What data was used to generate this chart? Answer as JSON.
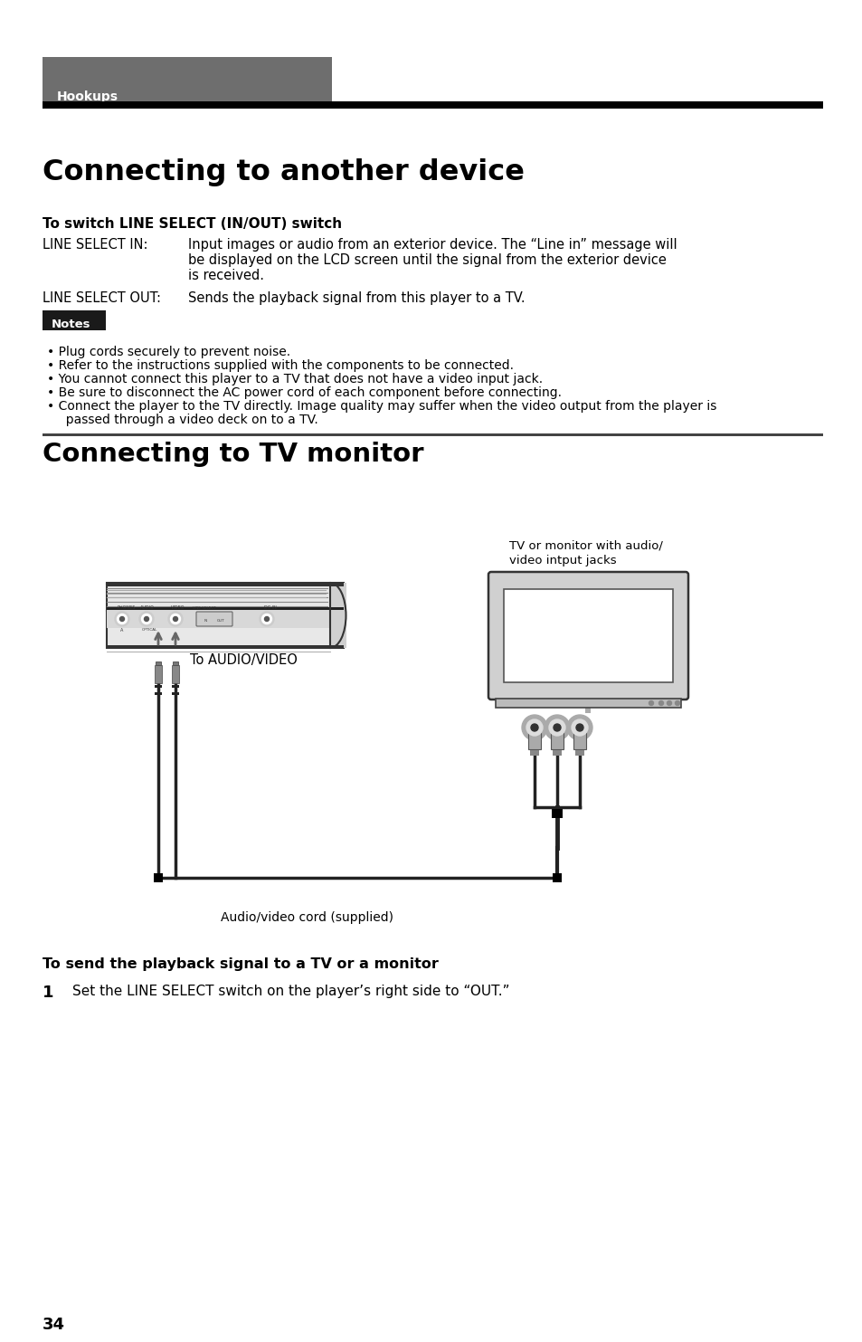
{
  "page_bg": "#ffffff",
  "tab_bg": "#6e6e6e",
  "tab_text": "Hookups",
  "tab_text_color": "#ffffff",
  "main_title": "Connecting to another device",
  "section1_heading": "To switch LINE SELECT (IN/OUT) switch",
  "line_select_in_label": "LINE SELECT IN:",
  "line_select_in_t1": "Input images or audio from an exterior device. The “Line in” message will",
  "line_select_in_t2": "be displayed on the LCD screen until the signal from the exterior device",
  "line_select_in_t3": "is received.",
  "line_select_out_label": "LINE SELECT OUT:",
  "line_select_out_text": "Sends the playback signal from this player to a TV.",
  "notes_label": "Notes",
  "notes_bg": "#1a1a1a",
  "notes_text_color": "#ffffff",
  "bullet_notes": [
    "Plug cords securely to prevent noise.",
    "Refer to the instructions supplied with the components to be connected.",
    "You cannot connect this player to a TV that does not have a video input jack.",
    "Be sure to disconnect the AC power cord of each component before connecting.",
    "Connect the player to the TV directly. Image quality may suffer when the video output from the player is",
    "  passed through a video deck on to a TV."
  ],
  "section2_heading": "Connecting to TV monitor",
  "tv_label_line1": "TV or monitor with audio/",
  "tv_label_line2": "video intput jacks",
  "audio_video_label": "To AUDIO/VIDEO",
  "cord_label": "Audio/video cord (supplied)",
  "section3_heading": "To send the playback signal to a TV or a monitor",
  "step1_num": "1",
  "step1_text": "Set the LINE SELECT switch on the player’s right side to “OUT.”",
  "page_number": "34"
}
